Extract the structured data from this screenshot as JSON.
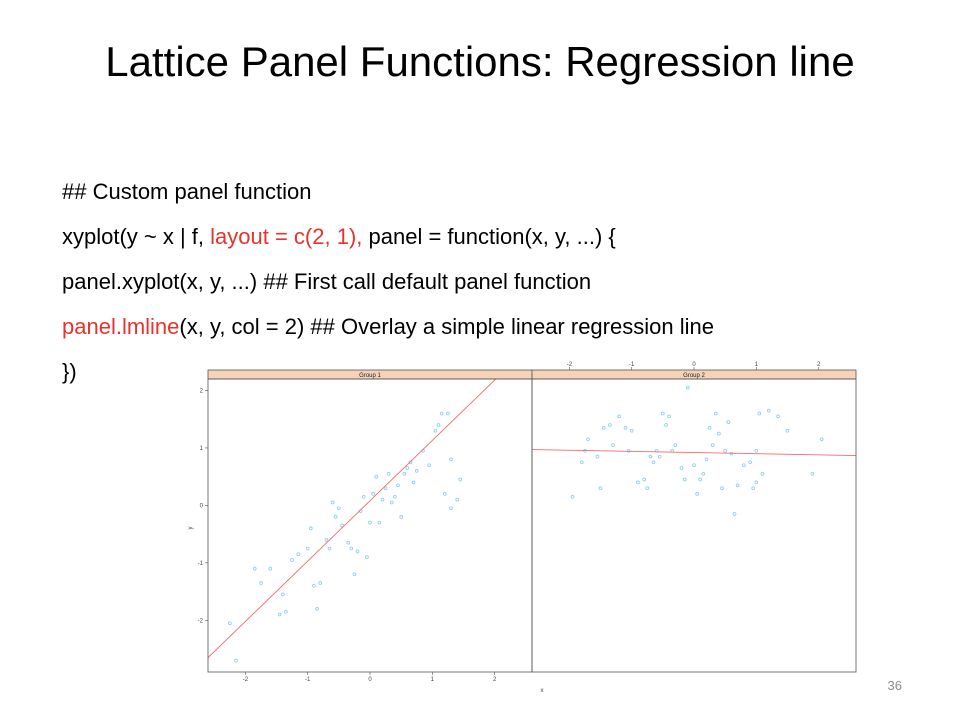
{
  "slide": {
    "title": "Lattice Panel Functions: Regression line",
    "lines": [
      {
        "a": "## Custom panel function"
      },
      {
        "a": "xyplot(y ~ x | f, ",
        "b": "layout = c(2, 1),",
        "c": " panel = function(x, y, ...) {"
      },
      {
        "a": "panel.xyplot(x, y, ...) ## First call default panel function"
      },
      {
        "b": "panel.lmline",
        "c": "(x, y, col = 2) ## Overlay a simple linear regression line"
      },
      {
        "a": "})"
      }
    ],
    "slide_number": "36"
  },
  "chart_data": {
    "type": "scatter",
    "x_ticks": [
      "-2",
      "-1",
      "0",
      "1",
      "2"
    ],
    "y_ticks": [
      "-2",
      "-1",
      "0",
      "1",
      "2"
    ],
    "xlim": [
      -2.6,
      2.6
    ],
    "ylim": [
      -2.9,
      2.2
    ],
    "xlabel": "x",
    "ylabel": "y",
    "point_color": "#8fd1f0",
    "line_color": "#f06b6b",
    "strip_color": "#f6d3b8",
    "panels": [
      {
        "strip": "Group 1",
        "line": {
          "intercept": 0.08,
          "slope": 1.05
        },
        "points": [
          [
            -2.15,
            -2.7
          ],
          [
            -2.25,
            -2.05
          ],
          [
            -1.85,
            -1.1
          ],
          [
            -1.75,
            -1.35
          ],
          [
            -1.6,
            -1.1
          ],
          [
            -1.45,
            -1.9
          ],
          [
            -1.4,
            -1.55
          ],
          [
            -1.35,
            -1.85
          ],
          [
            -1.25,
            -0.95
          ],
          [
            -1.15,
            -0.85
          ],
          [
            -1.0,
            -0.75
          ],
          [
            -0.95,
            -0.4
          ],
          [
            -0.9,
            -1.4
          ],
          [
            -0.85,
            -1.8
          ],
          [
            -0.8,
            -1.35
          ],
          [
            -0.7,
            -0.6
          ],
          [
            -0.65,
            -0.75
          ],
          [
            -0.6,
            0.05
          ],
          [
            -0.55,
            -0.2
          ],
          [
            -0.5,
            -0.05
          ],
          [
            -0.45,
            -0.35
          ],
          [
            -0.35,
            -0.65
          ],
          [
            -0.3,
            -0.75
          ],
          [
            -0.25,
            -1.2
          ],
          [
            -0.2,
            -0.8
          ],
          [
            -0.15,
            -0.1
          ],
          [
            -0.1,
            0.15
          ],
          [
            -0.05,
            -0.9
          ],
          [
            0.0,
            -0.3
          ],
          [
            0.05,
            0.2
          ],
          [
            0.1,
            0.5
          ],
          [
            0.15,
            -0.3
          ],
          [
            0.2,
            0.1
          ],
          [
            0.25,
            0.3
          ],
          [
            0.3,
            0.55
          ],
          [
            0.35,
            0.05
          ],
          [
            0.4,
            0.15
          ],
          [
            0.45,
            0.35
          ],
          [
            0.5,
            -0.2
          ],
          [
            0.55,
            0.55
          ],
          [
            0.6,
            0.65
          ],
          [
            0.65,
            0.75
          ],
          [
            0.7,
            0.4
          ],
          [
            0.75,
            0.6
          ],
          [
            0.85,
            0.95
          ],
          [
            0.95,
            0.7
          ],
          [
            1.05,
            1.3
          ],
          [
            1.1,
            1.4
          ],
          [
            1.15,
            1.6
          ],
          [
            1.25,
            1.6
          ],
          [
            1.3,
            -0.05
          ],
          [
            1.3,
            0.8
          ],
          [
            1.4,
            0.1
          ],
          [
            1.45,
            0.45
          ],
          [
            1.2,
            0.2
          ]
        ]
      },
      {
        "strip": "Group 2",
        "line": {
          "intercept": 0.92,
          "slope": -0.02
        },
        "points": [
          [
            -1.95,
            0.15
          ],
          [
            -1.8,
            0.75
          ],
          [
            -1.75,
            0.95
          ],
          [
            -1.7,
            1.15
          ],
          [
            -1.55,
            0.85
          ],
          [
            -1.5,
            0.3
          ],
          [
            -1.45,
            1.35
          ],
          [
            -1.35,
            1.4
          ],
          [
            -1.3,
            1.05
          ],
          [
            -1.2,
            1.55
          ],
          [
            -1.1,
            1.35
          ],
          [
            -1.05,
            0.95
          ],
          [
            -1.0,
            1.3
          ],
          [
            -0.9,
            0.4
          ],
          [
            -0.8,
            0.45
          ],
          [
            -0.75,
            0.3
          ],
          [
            -0.7,
            0.85
          ],
          [
            -0.65,
            0.75
          ],
          [
            -0.6,
            0.95
          ],
          [
            -0.55,
            0.85
          ],
          [
            -0.5,
            1.6
          ],
          [
            -0.45,
            1.4
          ],
          [
            -0.4,
            1.55
          ],
          [
            -0.35,
            0.95
          ],
          [
            -0.3,
            1.05
          ],
          [
            -0.2,
            0.65
          ],
          [
            -0.15,
            0.45
          ],
          [
            -0.1,
            2.05
          ],
          [
            0.0,
            0.7
          ],
          [
            0.05,
            0.2
          ],
          [
            0.1,
            0.45
          ],
          [
            0.15,
            0.55
          ],
          [
            0.2,
            0.8
          ],
          [
            0.25,
            1.35
          ],
          [
            0.3,
            1.05
          ],
          [
            0.35,
            1.6
          ],
          [
            0.4,
            1.25
          ],
          [
            0.45,
            0.3
          ],
          [
            0.5,
            0.95
          ],
          [
            0.55,
            1.45
          ],
          [
            0.6,
            0.9
          ],
          [
            0.65,
            -0.15
          ],
          [
            0.7,
            0.35
          ],
          [
            0.8,
            0.7
          ],
          [
            0.9,
            0.75
          ],
          [
            0.95,
            0.3
          ],
          [
            1.0,
            0.4
          ],
          [
            1.05,
            1.6
          ],
          [
            1.1,
            0.55
          ],
          [
            1.2,
            1.65
          ],
          [
            1.35,
            1.55
          ],
          [
            1.5,
            1.3
          ],
          [
            1.9,
            0.55
          ],
          [
            2.05,
            1.15
          ],
          [
            1.0,
            0.95
          ]
        ]
      }
    ]
  }
}
